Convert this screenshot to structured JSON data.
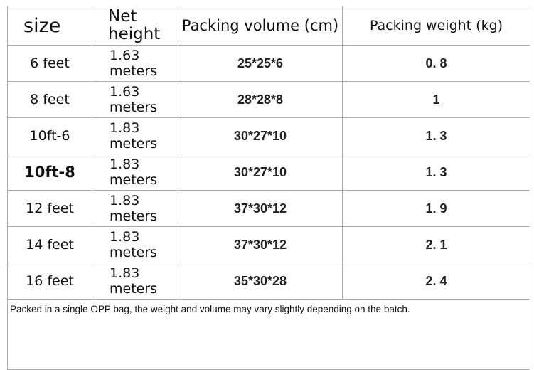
{
  "table": {
    "header": [
      "size",
      "Net height",
      "Packing volume (cm)",
      "Packing weight (kg)"
    ],
    "rows": [
      [
        "6 feet",
        "1.63 meters",
        "25*25*6",
        "0. 8"
      ],
      [
        "8 feet",
        "1.63 meters",
        "28*28*8",
        "1"
      ],
      [
        "10ft-6",
        "1.83 meters",
        "30*27*10",
        "1. 3"
      ],
      [
        "10ft-8",
        "1.83 meters",
        "30*27*10",
        "1. 3"
      ],
      [
        "12 feet",
        "1.83 meters",
        "37*30*12",
        "1. 9"
      ],
      [
        "14 feet",
        "1.83 meters",
        "37*30*12",
        "2. 1"
      ],
      [
        "16 feet",
        "1.83 meters",
        "35*30*28",
        "2. 4"
      ]
    ],
    "note": "Packed in a single OPP bag, the weight and volume may vary slightly depending on the batch."
  }
}
